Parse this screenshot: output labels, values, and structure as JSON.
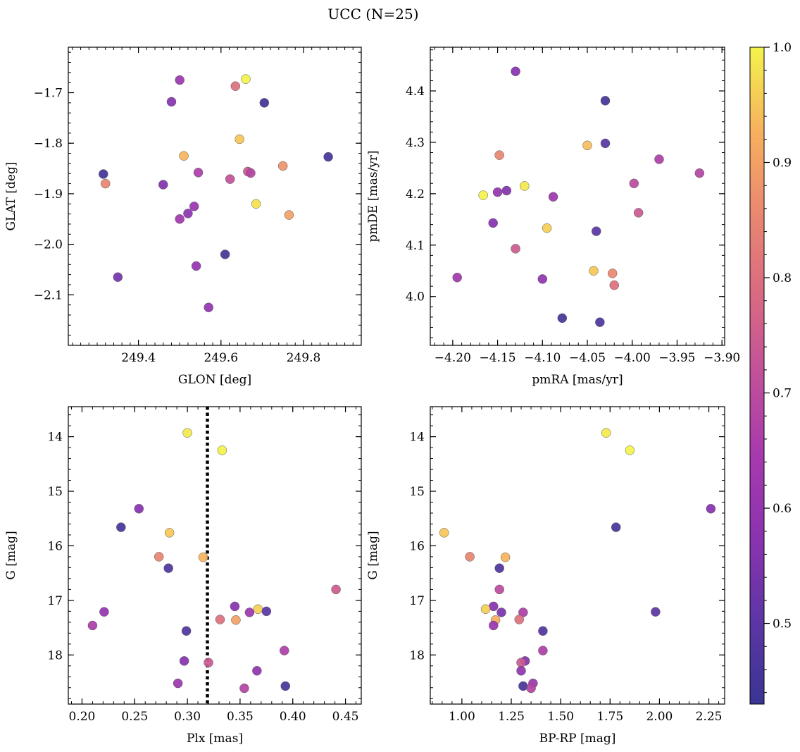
{
  "title": "UCC (N=25)",
  "colorbar": {
    "min": 0.43,
    "max": 1.0,
    "ticks": [
      "0.5",
      "0.6",
      "0.7",
      "0.8",
      "0.9",
      "1.0"
    ],
    "tick_values": [
      0.5,
      0.6,
      0.7,
      0.8,
      0.9,
      1.0
    ],
    "colormap": "plasma"
  },
  "chart_data": [
    {
      "type": "scatter",
      "id": "glon-glat",
      "xlabel": "GLON [deg]",
      "ylabel": "GLAT [deg]",
      "xlim": [
        249.23,
        249.94
      ],
      "ylim": [
        -2.2,
        -1.61
      ],
      "y_inverted": false,
      "xticks": [
        249.4,
        249.6,
        249.8
      ],
      "xtick_labels": [
        "249.4",
        "249.6",
        "249.8"
      ],
      "xminor": 0.02,
      "yticks": [
        -2.1,
        -2.0,
        -1.9,
        -1.8,
        -1.7
      ],
      "ytick_labels": [
        "−2.1",
        "−2.0",
        "−1.9",
        "−1.8",
        "−1.7"
      ],
      "yminor": 0.02,
      "points": [
        {
          "x": 249.66,
          "y": -1.673,
          "p": 1.0
        },
        {
          "x": 249.5,
          "y": -1.675,
          "p": 0.62
        },
        {
          "x": 249.635,
          "y": -1.687,
          "p": 0.8
        },
        {
          "x": 249.48,
          "y": -1.718,
          "p": 0.57
        },
        {
          "x": 249.705,
          "y": -1.72,
          "p": 0.45
        },
        {
          "x": 249.645,
          "y": -1.792,
          "p": 0.95
        },
        {
          "x": 249.51,
          "y": -1.825,
          "p": 0.93
        },
        {
          "x": 249.86,
          "y": -1.827,
          "p": 0.46
        },
        {
          "x": 249.75,
          "y": -1.845,
          "p": 0.88
        },
        {
          "x": 249.545,
          "y": -1.858,
          "p": 0.66
        },
        {
          "x": 249.665,
          "y": -1.856,
          "p": 0.74
        },
        {
          "x": 249.672,
          "y": -1.859,
          "p": 0.68
        },
        {
          "x": 249.315,
          "y": -1.861,
          "p": 0.45
        },
        {
          "x": 249.622,
          "y": -1.871,
          "p": 0.72
        },
        {
          "x": 249.32,
          "y": -1.88,
          "p": 0.85
        },
        {
          "x": 249.46,
          "y": -1.882,
          "p": 0.56
        },
        {
          "x": 249.685,
          "y": -1.92,
          "p": 0.98
        },
        {
          "x": 249.535,
          "y": -1.925,
          "p": 0.61
        },
        {
          "x": 249.52,
          "y": -1.939,
          "p": 0.58
        },
        {
          "x": 249.765,
          "y": -1.942,
          "p": 0.9
        },
        {
          "x": 249.5,
          "y": -1.95,
          "p": 0.63
        },
        {
          "x": 249.61,
          "y": -2.02,
          "p": 0.46
        },
        {
          "x": 249.54,
          "y": -2.043,
          "p": 0.6
        },
        {
          "x": 249.35,
          "y": -2.065,
          "p": 0.54
        },
        {
          "x": 249.57,
          "y": -2.125,
          "p": 0.59
        }
      ]
    },
    {
      "type": "scatter",
      "id": "pmra-pmde",
      "xlabel": "pmRA [mas/yr]",
      "ylabel": "pmDE [mas/yr]",
      "xlim": [
        -4.225,
        -3.897
      ],
      "ylim": [
        3.905,
        4.485
      ],
      "y_inverted": false,
      "xticks": [
        -4.2,
        -4.15,
        -4.1,
        -4.05,
        -4.0,
        -3.95,
        -3.9
      ],
      "xtick_labels": [
        "−4.20",
        "−4.15",
        "−4.10",
        "−4.05",
        "−4.00",
        "−3.95",
        "−3.90"
      ],
      "xminor": 0.01,
      "yticks": [
        4.0,
        4.1,
        4.2,
        4.3,
        4.4
      ],
      "ytick_labels": [
        "4.0",
        "4.1",
        "4.2",
        "4.3",
        "4.4"
      ],
      "yminor": 0.02,
      "points": [
        {
          "x": -4.13,
          "y": 4.438,
          "p": 0.57
        },
        {
          "x": -4.03,
          "y": 4.381,
          "p": 0.46
        },
        {
          "x": -4.05,
          "y": 4.294,
          "p": 0.94
        },
        {
          "x": -4.03,
          "y": 4.298,
          "p": 0.5
        },
        {
          "x": -4.148,
          "y": 4.275,
          "p": 0.85
        },
        {
          "x": -3.97,
          "y": 4.267,
          "p": 0.66
        },
        {
          "x": -3.925,
          "y": 4.24,
          "p": 0.68
        },
        {
          "x": -3.998,
          "y": 4.22,
          "p": 0.7
        },
        {
          "x": -4.12,
          "y": 4.215,
          "p": 0.99
        },
        {
          "x": -4.15,
          "y": 4.203,
          "p": 0.6
        },
        {
          "x": -4.14,
          "y": 4.206,
          "p": 0.56
        },
        {
          "x": -4.166,
          "y": 4.197,
          "p": 1.0
        },
        {
          "x": -4.088,
          "y": 4.194,
          "p": 0.62
        },
        {
          "x": -3.993,
          "y": 4.163,
          "p": 0.74
        },
        {
          "x": -4.155,
          "y": 4.143,
          "p": 0.57
        },
        {
          "x": -4.095,
          "y": 4.133,
          "p": 0.96
        },
        {
          "x": -4.04,
          "y": 4.127,
          "p": 0.5
        },
        {
          "x": -4.13,
          "y": 4.093,
          "p": 0.75
        },
        {
          "x": -4.043,
          "y": 4.05,
          "p": 0.95
        },
        {
          "x": -4.022,
          "y": 4.045,
          "p": 0.86
        },
        {
          "x": -4.195,
          "y": 4.037,
          "p": 0.63
        },
        {
          "x": -4.1,
          "y": 4.034,
          "p": 0.59
        },
        {
          "x": -4.02,
          "y": 4.022,
          "p": 0.8
        },
        {
          "x": -4.078,
          "y": 3.958,
          "p": 0.46
        },
        {
          "x": -4.036,
          "y": 3.95,
          "p": 0.47
        }
      ]
    },
    {
      "type": "scatter",
      "id": "plx-g",
      "xlabel": "Plx [mas]",
      "ylabel": "G [mag]",
      "xlim": [
        0.187,
        0.465
      ],
      "ylim": [
        18.9,
        13.45
      ],
      "y_inverted": true,
      "vline": 0.319,
      "xticks": [
        0.2,
        0.25,
        0.3,
        0.35,
        0.4,
        0.45
      ],
      "xtick_labels": [
        "0.20",
        "0.25",
        "0.30",
        "0.35",
        "0.40",
        "0.45"
      ],
      "xminor": 0.01,
      "yticks": [
        14,
        15,
        16,
        17,
        18
      ],
      "ytick_labels": [
        "14",
        "15",
        "16",
        "17",
        "18"
      ],
      "yminor": 0.2,
      "points": [
        {
          "x": 0.3,
          "y": 13.93,
          "p": 0.99
        },
        {
          "x": 0.333,
          "y": 14.25,
          "p": 1.0
        },
        {
          "x": 0.254,
          "y": 15.32,
          "p": 0.57
        },
        {
          "x": 0.237,
          "y": 15.66,
          "p": 0.46
        },
        {
          "x": 0.283,
          "y": 15.76,
          "p": 0.95
        },
        {
          "x": 0.273,
          "y": 16.2,
          "p": 0.85
        },
        {
          "x": 0.315,
          "y": 16.21,
          "p": 0.93
        },
        {
          "x": 0.282,
          "y": 16.41,
          "p": 0.47
        },
        {
          "x": 0.441,
          "y": 16.8,
          "p": 0.75
        },
        {
          "x": 0.345,
          "y": 17.11,
          "p": 0.57
        },
        {
          "x": 0.367,
          "y": 17.16,
          "p": 0.96
        },
        {
          "x": 0.375,
          "y": 17.2,
          "p": 0.5
        },
        {
          "x": 0.359,
          "y": 17.22,
          "p": 0.62
        },
        {
          "x": 0.221,
          "y": 17.21,
          "p": 0.6
        },
        {
          "x": 0.331,
          "y": 17.35,
          "p": 0.8
        },
        {
          "x": 0.346,
          "y": 17.36,
          "p": 0.9
        },
        {
          "x": 0.21,
          "y": 17.46,
          "p": 0.66
        },
        {
          "x": 0.299,
          "y": 17.56,
          "p": 0.48
        },
        {
          "x": 0.392,
          "y": 17.92,
          "p": 0.66
        },
        {
          "x": 0.297,
          "y": 18.11,
          "p": 0.57
        },
        {
          "x": 0.32,
          "y": 18.14,
          "p": 0.74
        },
        {
          "x": 0.366,
          "y": 18.29,
          "p": 0.59
        },
        {
          "x": 0.291,
          "y": 18.52,
          "p": 0.62
        },
        {
          "x": 0.393,
          "y": 18.57,
          "p": 0.46
        },
        {
          "x": 0.354,
          "y": 18.61,
          "p": 0.68
        }
      ]
    },
    {
      "type": "scatter",
      "id": "bprp-g",
      "xlabel": "BP-RP [mag]",
      "ylabel": "G [mag]",
      "xlim": [
        0.84,
        2.33
      ],
      "ylim": [
        18.9,
        13.45
      ],
      "y_inverted": true,
      "xticks": [
        1.0,
        1.25,
        1.5,
        1.75,
        2.0,
        2.25
      ],
      "xtick_labels": [
        "1.00",
        "1.25",
        "1.50",
        "1.75",
        "2.00",
        "2.25"
      ],
      "xminor": 0.05,
      "yticks": [
        14,
        15,
        16,
        17,
        18
      ],
      "ytick_labels": [
        "14",
        "15",
        "16",
        "17",
        "18"
      ],
      "yminor": 0.2,
      "points": [
        {
          "x": 1.73,
          "y": 13.93,
          "p": 0.99
        },
        {
          "x": 1.85,
          "y": 14.25,
          "p": 1.0
        },
        {
          "x": 2.26,
          "y": 15.32,
          "p": 0.57
        },
        {
          "x": 1.78,
          "y": 15.66,
          "p": 0.46
        },
        {
          "x": 0.91,
          "y": 15.76,
          "p": 0.95
        },
        {
          "x": 1.04,
          "y": 16.2,
          "p": 0.85
        },
        {
          "x": 1.22,
          "y": 16.21,
          "p": 0.93
        },
        {
          "x": 1.19,
          "y": 16.41,
          "p": 0.47
        },
        {
          "x": 1.19,
          "y": 16.8,
          "p": 0.7
        },
        {
          "x": 1.16,
          "y": 17.11,
          "p": 0.57
        },
        {
          "x": 1.12,
          "y": 17.16,
          "p": 0.96
        },
        {
          "x": 1.2,
          "y": 17.22,
          "p": 0.55
        },
        {
          "x": 1.31,
          "y": 17.22,
          "p": 0.66
        },
        {
          "x": 1.98,
          "y": 17.21,
          "p": 0.5
        },
        {
          "x": 1.17,
          "y": 17.36,
          "p": 0.92
        },
        {
          "x": 1.29,
          "y": 17.35,
          "p": 0.8
        },
        {
          "x": 1.16,
          "y": 17.46,
          "p": 0.62
        },
        {
          "x": 1.41,
          "y": 17.56,
          "p": 0.48
        },
        {
          "x": 1.41,
          "y": 17.92,
          "p": 0.66
        },
        {
          "x": 1.32,
          "y": 18.11,
          "p": 0.56
        },
        {
          "x": 1.3,
          "y": 18.14,
          "p": 0.74
        },
        {
          "x": 1.3,
          "y": 18.29,
          "p": 0.59
        },
        {
          "x": 1.36,
          "y": 18.52,
          "p": 0.62
        },
        {
          "x": 1.31,
          "y": 18.57,
          "p": 0.46
        },
        {
          "x": 1.35,
          "y": 18.61,
          "p": 0.68
        }
      ]
    }
  ]
}
